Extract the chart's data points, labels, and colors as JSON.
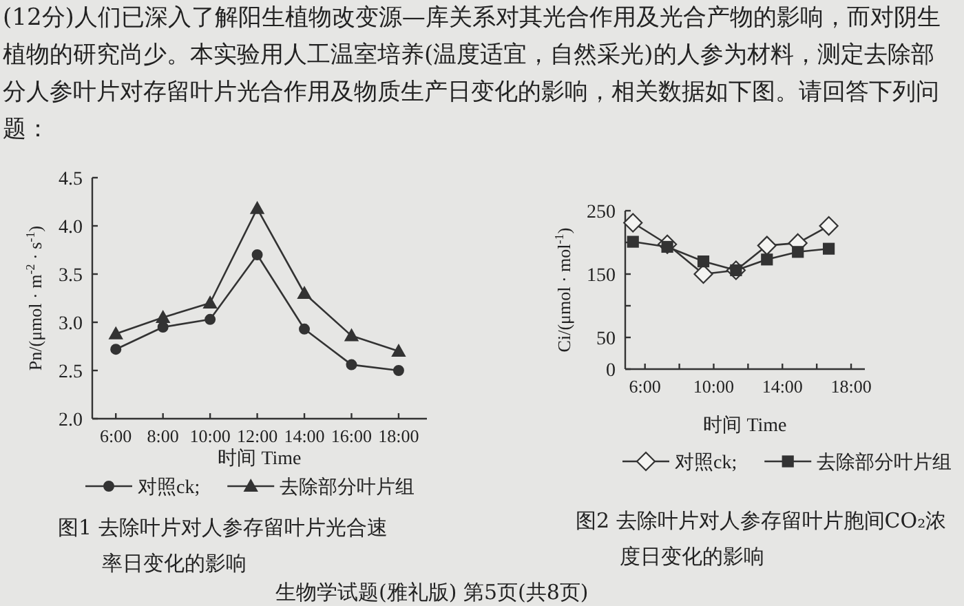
{
  "chart_data": [
    {
      "type": "other",
      "annotations": [
        "(12分)人们已深入了解阳生植物改变源—库关系对其光合作用及光合产物的影响，而对阴生植物的研究尚少。本实验用人工温室培养(温度适宜，自然采光)的人参为材料，测定去除部分人参叶片对存留叶片光合作用及物质生产日变化的影响，相关数据如下图。请回答下列问题："
      ]
    },
    {
      "type": "line",
      "xlabel": "时间 Time",
      "ylabel": "Pn/(μmol · m$^{-2}$ · s$^{-1}$)",
      "xlim": [
        5,
        19.2
      ],
      "ylim": [
        2.0,
        4.5
      ],
      "xticks": [
        {
          "value": 6,
          "label": "6:00"
        },
        {
          "value": 8,
          "label": "8:00"
        },
        {
          "value": 10,
          "label": "10:00"
        },
        {
          "value": 12,
          "label": "12:00"
        },
        {
          "value": 14,
          "label": "14:00"
        },
        {
          "value": 16,
          "label": "16:00"
        },
        {
          "value": 18,
          "label": "18:00"
        }
      ],
      "yticks": [
        {
          "value": 2,
          "label": "2.0"
        },
        2.5,
        {
          "value": 3,
          "label": "3.0"
        },
        3.5,
        {
          "value": 4,
          "label": "4.0"
        },
        4.5
      ],
      "x": [
        6,
        8,
        10,
        12,
        14,
        16,
        18
      ],
      "legend": "bottom",
      "grid": false,
      "series": [
        {
          "name": "对照ck;",
          "color": "#333333",
          "marker": "circle",
          "values": [
            2.72,
            2.95,
            3.03,
            3.7,
            2.93,
            2.56,
            2.5
          ]
        },
        {
          "name": "去除部分叶片组",
          "color": "#333333",
          "marker": "triangle",
          "values": [
            2.88,
            3.05,
            3.2,
            4.18,
            3.3,
            2.86,
            2.7
          ]
        }
      ],
      "annotations": [
        "图1 去除叶片对人参存留叶片光合速率日变化的影响"
      ]
    },
    {
      "type": "line",
      "xlabel": "时间 Time",
      "ylabel": "Ci/(μmol · mol$^{-1}$)",
      "xlim": [
        4.85,
        18.8
      ],
      "ylim": [
        0,
        250
      ],
      "xticks": [
        {
          "value": 6,
          "label": "6:00"
        },
        {
          "value": 8,
          "label": null
        },
        {
          "value": 10,
          "label": "10:00"
        },
        {
          "value": 12,
          "label": null
        },
        {
          "value": 14,
          "label": "14:00"
        },
        {
          "value": 16,
          "label": null
        },
        {
          "value": 18,
          "label": "18:00"
        }
      ],
      "yticks": [
        0,
        50,
        {
          "value": 100,
          "label": null
        },
        150,
        {
          "value": 200,
          "label": null
        },
        250
      ],
      "x": [
        5.3,
        7.3,
        9.4,
        11.3,
        13.1,
        14.9,
        16.7
      ],
      "legend": "bottom",
      "grid": false,
      "series": [
        {
          "name": "对照ck;",
          "color": "#333333",
          "marker": "diamond",
          "values": [
            231,
            197,
            150,
            156,
            195,
            199,
            226
          ]
        },
        {
          "name": "去除部分叶片组",
          "color": "#333333",
          "marker": "square",
          "values": [
            201,
            193,
            170,
            156,
            173,
            185,
            190
          ]
        }
      ],
      "annotations": [
        "图2 去除叶片对人参存留叶片胞间CO₂浓度日变化的影响"
      ]
    },
    {
      "type": "other",
      "annotations": [
        "生物学试题(雅礼版)  第5页(共8页)"
      ]
    }
  ]
}
